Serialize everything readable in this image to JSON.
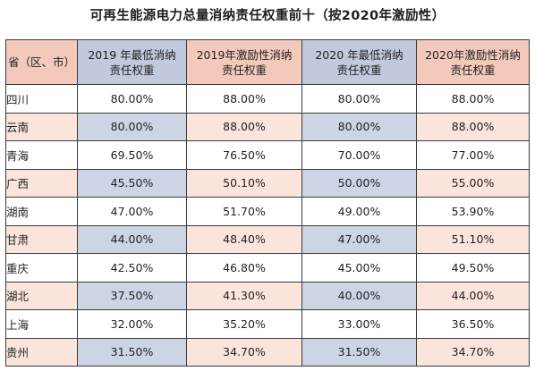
{
  "title": "可再生能源电力总量消纳责任权重前十（按2020年激励性）",
  "table": {
    "headers": [
      {
        "line1": "省（区、市）",
        "line2": ""
      },
      {
        "line1": "2019 年最低消纳",
        "line2": "责任权重"
      },
      {
        "line1": "2019年激励性消纳",
        "line2": "责任权重"
      },
      {
        "line1": "2020 年最低消纳",
        "line2": "责任权重"
      },
      {
        "line1": "2020年激励性消纳",
        "line2": "责任权重"
      }
    ],
    "rows": [
      {
        "region": "四川",
        "min2019": "80.00%",
        "inc2019": "88.00%",
        "min2020": "80.00%",
        "inc2020": "88.00%"
      },
      {
        "region": "云南",
        "min2019": "80.00%",
        "inc2019": "88.00%",
        "min2020": "80.00%",
        "inc2020": "88.00%"
      },
      {
        "region": "青海",
        "min2019": "69.50%",
        "inc2019": "76.50%",
        "min2020": "70.00%",
        "inc2020": "77.00%"
      },
      {
        "region": "广西",
        "min2019": "45.50%",
        "inc2019": "50.10%",
        "min2020": "50.00%",
        "inc2020": "55.00%"
      },
      {
        "region": "湖南",
        "min2019": "47.00%",
        "inc2019": "51.70%",
        "min2020": "49.00%",
        "inc2020": "53.90%"
      },
      {
        "region": "甘肃",
        "min2019": "44.00%",
        "inc2019": "48.40%",
        "min2020": "47.00%",
        "inc2020": "51.10%"
      },
      {
        "region": "重庆",
        "min2019": "42.50%",
        "inc2019": "46.80%",
        "min2020": "45.00%",
        "inc2020": "49.50%"
      },
      {
        "region": "湖北",
        "min2019": "37.50%",
        "inc2019": "41.30%",
        "min2020": "40.00%",
        "inc2020": "44.00%"
      },
      {
        "region": "上海",
        "min2019": "32.00%",
        "inc2019": "35.20%",
        "min2020": "33.00%",
        "inc2020": "36.50%"
      },
      {
        "region": "贵州",
        "min2019": "31.50%",
        "inc2019": "34.70%",
        "min2020": "31.50%",
        "inc2020": "34.70%"
      }
    ]
  },
  "colors": {
    "header_pink": "#f3c9bb",
    "header_blue": "#c1c9dc",
    "row_pink": "#fbe4dc",
    "row_blue": "#cdd4e4",
    "border": "#3a3a3a"
  }
}
